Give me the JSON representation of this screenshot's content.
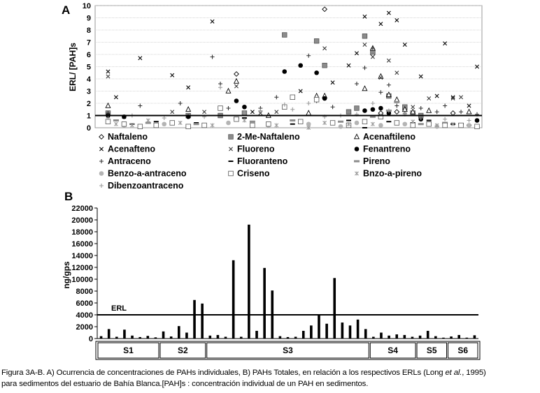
{
  "chart_data": [
    {
      "panel": "A",
      "type": "scatter",
      "ylabel": "ERL/ [PAH]s",
      "ylim": [
        0,
        10
      ],
      "yticks": [
        0,
        1,
        2,
        3,
        4,
        5,
        6,
        7,
        8,
        9,
        10
      ],
      "reference_line": 1,
      "n_samples": 48,
      "legend": [
        {
          "name": "Naftaleno",
          "marker": "◇"
        },
        {
          "name": "2-Me-Naftaleno",
          "marker": "■"
        },
        {
          "name": "Acenaftileno",
          "marker": "△"
        },
        {
          "name": "Acenafteno",
          "marker": "×"
        },
        {
          "name": "Fluoreno",
          "marker": "×"
        },
        {
          "name": "Fenantreno",
          "marker": "●"
        },
        {
          "name": "Antraceno",
          "marker": "+"
        },
        {
          "name": "Fluoranteno",
          "marker": "−"
        },
        {
          "name": "Pireno",
          "marker": "▬"
        },
        {
          "name": "Benzo-a-antraceno",
          "marker": "●"
        },
        {
          "name": "Criseno",
          "marker": "□"
        },
        {
          "name": "Bnzo-a-pireno",
          "marker": "✳"
        },
        {
          "name": "Dibenzoantraceno",
          "marker": "+"
        }
      ],
      "series": [
        {
          "name": "Naftaleno",
          "points": [
            [
              17,
              4.4
            ],
            [
              28,
              9.7
            ],
            [
              34,
              6.0
            ],
            [
              35,
              1.2
            ],
            [
              37,
              1.3
            ],
            [
              38,
              1.5
            ],
            [
              40,
              0.9
            ],
            [
              44,
              1.2
            ]
          ]
        },
        {
          "name": "2-Me-Naftaleno",
          "points": [
            [
              1,
              1.2
            ],
            [
              11,
              1.0
            ],
            [
              15,
              1.0
            ],
            [
              18,
              1.2
            ],
            [
              23,
              7.6
            ],
            [
              27,
              7.1
            ],
            [
              28,
              5.1
            ],
            [
              31,
              1.3
            ],
            [
              32,
              1.6
            ],
            [
              33,
              7.5
            ],
            [
              34,
              6.2
            ],
            [
              36,
              2.6
            ],
            [
              38,
              1.7
            ],
            [
              39,
              1.2
            ],
            [
              40,
              1.0
            ]
          ]
        },
        {
          "name": "Acenaftileno",
          "points": [
            [
              1,
              1.8
            ],
            [
              11,
              1.5
            ],
            [
              16,
              3.0
            ],
            [
              17,
              3.8
            ],
            [
              21,
              1.0
            ],
            [
              26,
              1.2
            ],
            [
              27,
              2.6
            ],
            [
              28,
              2.6
            ],
            [
              33,
              3.2
            ],
            [
              34,
              6.5
            ],
            [
              35,
              4.2
            ],
            [
              36,
              2.7
            ],
            [
              37,
              2.3
            ],
            [
              38,
              1.5
            ],
            [
              39,
              1.3
            ],
            [
              41,
              1.4
            ],
            [
              46,
              1.3
            ]
          ]
        },
        {
          "name": "Acenafteno",
          "points": [
            [
              1,
              4.6
            ],
            [
              2,
              2.5
            ],
            [
              3,
              0.9
            ],
            [
              5,
              5.7
            ],
            [
              9,
              4.3
            ],
            [
              11,
              3.3
            ],
            [
              14,
              8.7
            ],
            [
              19,
              1.3
            ],
            [
              25,
              3.0
            ],
            [
              29,
              3.7
            ],
            [
              31,
              5.1
            ],
            [
              32,
              6.1
            ],
            [
              33,
              9.1
            ],
            [
              35,
              8.5
            ],
            [
              36,
              9.4
            ],
            [
              37,
              8.8
            ],
            [
              38,
              6.8
            ],
            [
              40,
              4.2
            ],
            [
              42,
              2.6
            ],
            [
              43,
              6.9
            ],
            [
              44,
              2.5
            ],
            [
              46,
              1.8
            ],
            [
              47,
              5.0
            ]
          ]
        },
        {
          "name": "Fluoreno",
          "points": [
            [
              1,
              4.2
            ],
            [
              9,
              1.3
            ],
            [
              13,
              1.3
            ],
            [
              17,
              3.4
            ],
            [
              20,
              1.2
            ],
            [
              22,
              1.3
            ],
            [
              27,
              2.3
            ],
            [
              28,
              6.5
            ],
            [
              33,
              6.8
            ],
            [
              34,
              5.8
            ],
            [
              35,
              4.1
            ],
            [
              36,
              5.5
            ],
            [
              37,
              4.5
            ],
            [
              39,
              1.7
            ],
            [
              41,
              2.4
            ],
            [
              44,
              2.4
            ],
            [
              45,
              2.5
            ]
          ]
        },
        {
          "name": "Fenantreno",
          "points": [
            [
              1,
              1.0
            ],
            [
              3,
              0.9
            ],
            [
              11,
              0.9
            ],
            [
              17,
              2.2
            ],
            [
              18,
              1.7
            ],
            [
              23,
              4.6
            ],
            [
              25,
              5.1
            ],
            [
              27,
              4.5
            ],
            [
              28,
              2.4
            ],
            [
              33,
              1.4
            ],
            [
              34,
              1.5
            ],
            [
              35,
              1.6
            ],
            [
              36,
              1.2
            ],
            [
              40,
              0.7
            ],
            [
              47,
              0.6
            ]
          ]
        },
        {
          "name": "Antraceno",
          "points": [
            [
              1,
              1.2
            ],
            [
              5,
              1.8
            ],
            [
              10,
              2.0
            ],
            [
              14,
              5.8
            ],
            [
              15,
              3.6
            ],
            [
              16,
              1.6
            ],
            [
              20,
              1.6
            ],
            [
              22,
              2.5
            ],
            [
              26,
              5.9
            ],
            [
              27,
              2.2
            ],
            [
              29,
              1.7
            ],
            [
              32,
              3.6
            ],
            [
              33,
              4.9
            ],
            [
              34,
              6.5
            ],
            [
              35,
              2.9
            ],
            [
              36,
              3.5
            ],
            [
              37,
              1.8
            ],
            [
              38,
              1.2
            ],
            [
              40,
              1.6
            ],
            [
              42,
              1.3
            ],
            [
              43,
              1.8
            ],
            [
              45,
              1.3
            ],
            [
              47,
              1.1
            ]
          ]
        },
        {
          "name": "Fluoranteno",
          "points": [
            [
              4,
              0.3
            ],
            [
              7,
              0.5
            ],
            [
              12,
              0.4
            ],
            [
              18,
              0.8
            ],
            [
              24,
              0.3
            ],
            [
              29,
              0.4
            ],
            [
              31,
              0.6
            ],
            [
              33,
              0.0
            ],
            [
              36,
              0.5
            ],
            [
              39,
              0.4
            ],
            [
              41,
              0.6
            ],
            [
              44,
              0.3
            ],
            [
              46,
              0.2
            ]
          ]
        },
        {
          "name": "Pireno",
          "points": [
            [
              2,
              0.6
            ],
            [
              6,
              0.4
            ],
            [
              12,
              0.3
            ],
            [
              17,
              0.8
            ],
            [
              19,
              0.5
            ],
            [
              24,
              0.6
            ],
            [
              30,
              0.5
            ],
            [
              34,
              0.9
            ],
            [
              36,
              1.4
            ],
            [
              37,
              2.1
            ],
            [
              40,
              0.3
            ],
            [
              43,
              0.4
            ],
            [
              45,
              0.3
            ]
          ]
        },
        {
          "name": "Benzo-a-antraceno",
          "points": [
            [
              3,
              0.2
            ],
            [
              5,
              0.1
            ],
            [
              8,
              0.3
            ],
            [
              13,
              0.2
            ],
            [
              16,
              0.4
            ],
            [
              21,
              0.2
            ],
            [
              26,
              0.3
            ],
            [
              30,
              0.1
            ],
            [
              32,
              0.4
            ],
            [
              35,
              0.2
            ],
            [
              38,
              0.3
            ],
            [
              42,
              0.1
            ],
            [
              46,
              0.2
            ]
          ]
        },
        {
          "name": "Criseno",
          "points": [
            [
              1,
              0.5
            ],
            [
              3,
              0.3
            ],
            [
              5,
              0.1
            ],
            [
              7,
              0.2
            ],
            [
              9,
              0.4
            ],
            [
              11,
              0.1
            ],
            [
              13,
              0.2
            ],
            [
              15,
              1.6
            ],
            [
              17,
              0.7
            ],
            [
              19,
              0.2
            ],
            [
              21,
              0.3
            ],
            [
              23,
              1.7
            ],
            [
              24,
              2.5
            ],
            [
              25,
              0.5
            ],
            [
              27,
              2.3
            ],
            [
              29,
              0.4
            ],
            [
              31,
              0.2
            ],
            [
              33,
              0.5
            ],
            [
              35,
              0.9
            ],
            [
              37,
              0.4
            ],
            [
              39,
              0.2
            ],
            [
              41,
              0.3
            ],
            [
              43,
              0.2
            ],
            [
              45,
              0.2
            ],
            [
              47,
              0.1
            ]
          ]
        },
        {
          "name": "Bnzo-a-pireno",
          "points": [
            [
              2,
              0.3
            ],
            [
              4,
              0.2
            ],
            [
              6,
              0.6
            ],
            [
              10,
              0.4
            ],
            [
              14,
              0.2
            ],
            [
              18,
              0.6
            ],
            [
              22,
              0.2
            ],
            [
              26,
              0.0
            ],
            [
              28,
              0.4
            ],
            [
              31,
              0.3
            ],
            [
              34,
              0.3
            ],
            [
              39,
              0.5
            ],
            [
              42,
              0.2
            ],
            [
              44,
              0.3
            ]
          ]
        },
        {
          "name": "Dibenzoantraceno",
          "points": [
            [
              1,
              0.8
            ],
            [
              4,
              1.0
            ],
            [
              8,
              0.8
            ],
            [
              13,
              0.9
            ],
            [
              15,
              3.3
            ],
            [
              18,
              1.2
            ],
            [
              20,
              1.4
            ],
            [
              23,
              1.9
            ],
            [
              24,
              1.5
            ],
            [
              26,
              2.0
            ],
            [
              28,
              0.9
            ],
            [
              30,
              1.0
            ],
            [
              32,
              1.1
            ],
            [
              34,
              2.0
            ],
            [
              36,
              1.4
            ],
            [
              38,
              1.1
            ],
            [
              40,
              0.8
            ],
            [
              43,
              0.7
            ],
            [
              46,
              0.6
            ]
          ]
        }
      ]
    },
    {
      "panel": "B",
      "type": "bar",
      "ylabel": "ng/gps",
      "ylim": [
        0,
        22000
      ],
      "yticks": [
        0,
        2000,
        4000,
        6000,
        8000,
        10000,
        12000,
        14000,
        16000,
        18000,
        20000,
        22000
      ],
      "reference_line": {
        "label": "ERL",
        "value": 4000
      },
      "values": [
        400,
        1600,
        300,
        1500,
        500,
        250,
        450,
        200,
        1200,
        350,
        2100,
        1000,
        6500,
        5900,
        500,
        600,
        300,
        13200,
        300,
        19200,
        1300,
        11900,
        8100,
        400,
        250,
        300,
        1300,
        2200,
        4000,
        2500,
        10200,
        2700,
        2200,
        3200,
        1600,
        300,
        1000,
        500,
        700,
        600,
        300,
        500,
        1300,
        400,
        150,
        350,
        600,
        150,
        550
      ],
      "segments": [
        {
          "label": "S1",
          "start": 0,
          "end": 7
        },
        {
          "label": "S2",
          "start": 8,
          "end": 13
        },
        {
          "label": "S3",
          "start": 14,
          "end": 34
        },
        {
          "label": "S4",
          "start": 35,
          "end": 40
        },
        {
          "label": "S5",
          "start": 41,
          "end": 44
        },
        {
          "label": "S6",
          "start": 45,
          "end": 48
        }
      ]
    }
  ],
  "caption": {
    "line1_a": "Figura 3A-B. A) Ocurrencia de concentraciones de PAHs individuales, B) PAHs Totales, en relación a los respectivos ERLs (Long ",
    "line1_italic": "et al.",
    "line1_b": ", 1995)",
    "line2": "para sedimentos del estuario de Bahía Blanca.[PAH]s : concentración individual de un PAH en sedimentos."
  }
}
